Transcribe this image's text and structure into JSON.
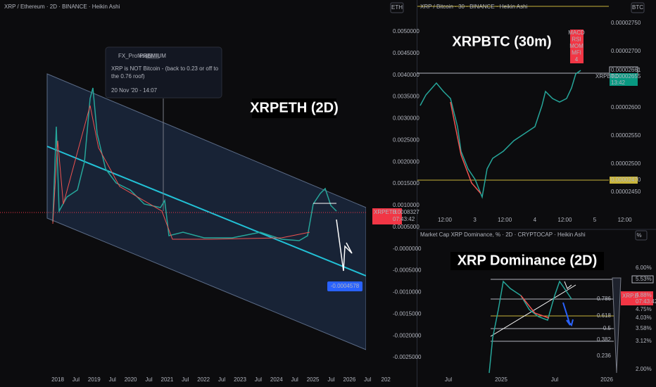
{
  "left": {
    "header": "XRP / Ethereum · 2D · BINANCE · Heikin Ashi",
    "currency": "ETH",
    "title": "XRPETH (2D)",
    "yaxis": [
      "0.0050000",
      "0.0045000",
      "0.0040000",
      "0.0035000",
      "0.0030000",
      "0.0025000",
      "0.0020000",
      "0.0015000",
      "0.0010000",
      "0.0005000",
      "-0.0000000",
      "-0.0005000",
      "-0.0010000",
      "-0.0015000",
      "-0.0020000",
      "-0.0025000"
    ],
    "symbol": "XRPETH",
    "price": "0.0008327",
    "countdown": "07:43:42",
    "target": "-0.0004578",
    "xaxis": [
      "2018",
      "Jul",
      "2019",
      "Jul",
      "2020",
      "Jul",
      "2021",
      "Jul",
      "2022",
      "Jul",
      "2023",
      "Jul",
      "2024",
      "Jul",
      "2025",
      "Jul",
      "2026",
      "Jul",
      "202"
    ],
    "note": {
      "author": "FX_Professor",
      "badge": "PREMIUM",
      "text": "XRP is NOT Bitcoin - (back to 0.23 or off to the 0.76 roof)",
      "date": "20 Nov '20 - 14:07"
    }
  },
  "top": {
    "header": "XRP / Bitcoin · 30 · BINANCE · Heikin Ashi",
    "currency": "BTC",
    "title": "XRPBTC (30m)",
    "indicator": [
      "MACD",
      "RSI",
      "MOM",
      "MFI",
      "4"
    ],
    "yaxis": [
      "0.00002750",
      "0.00002700",
      "0.00002600",
      "0.00002550",
      "0.00002500",
      "0.00002450"
    ],
    "level_high": "0.00002661",
    "symbol": "XRPBTC",
    "price": "0.00002655",
    "countdown": "13:42",
    "level_low": "0.00002470",
    "xaxis": [
      "12:00",
      "3",
      "12:00",
      "4",
      "12:00",
      "5",
      "12:00"
    ]
  },
  "bottom": {
    "header": "Market Cap XRP Dominance, % · 2D · CRYPTOCAP · Heikin Ashi",
    "currency": "%",
    "title": "XRP Dominance (2D)",
    "yaxis": [
      "6.00%",
      "5.53%",
      "4.75%",
      "4.03%",
      "3.58%",
      "3.12%",
      "2.00%"
    ],
    "symbol": "XRP.D",
    "price": "4.88%",
    "countdown": "07:43:42",
    "fib": [
      "0.786",
      "0.618",
      "0.5",
      "0.382",
      "0.236"
    ],
    "xaxis": [
      "Jul",
      "2025",
      "Jul",
      "2026"
    ]
  }
}
